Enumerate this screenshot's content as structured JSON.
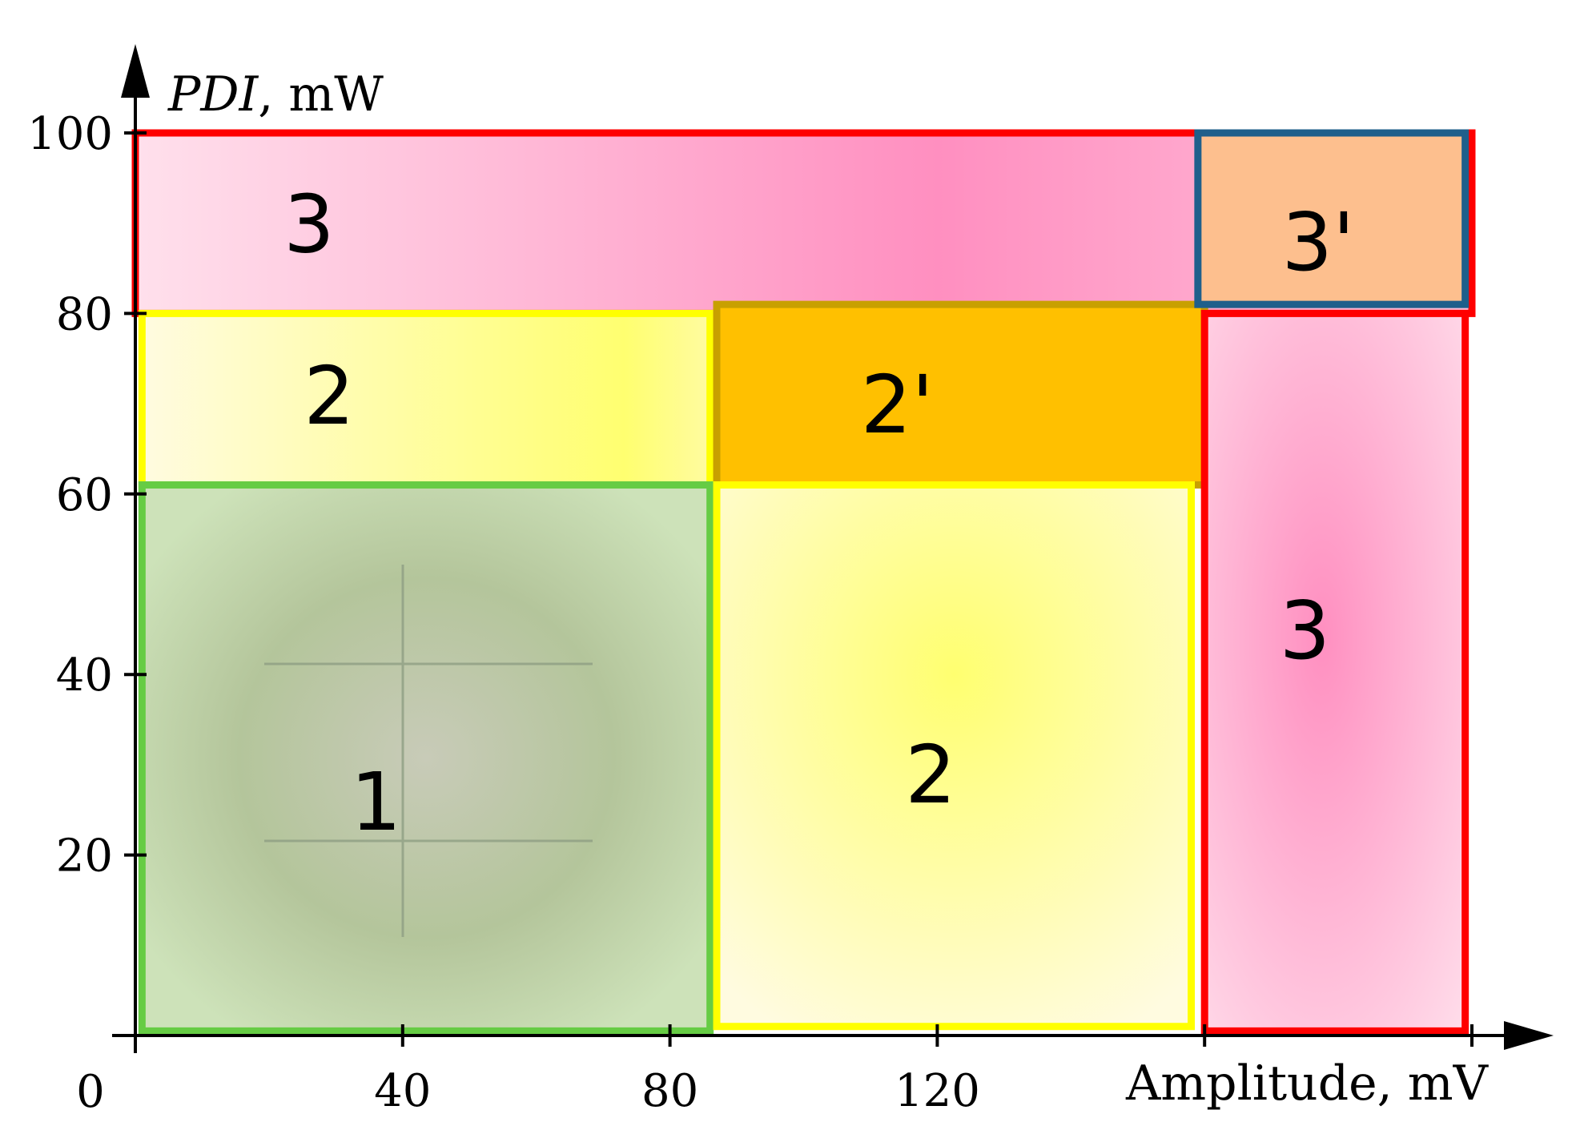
{
  "chart_data": {
    "type": "region_map",
    "title": "",
    "xlabel": "Amplitude, mV",
    "ylabel_italic": "PDI",
    "ylabel_unit": ", mW",
    "xlim": [
      0,
      200
    ],
    "ylim": [
      0,
      100
    ],
    "origin_label": "0",
    "x_ticks": [
      {
        "value": 40,
        "label": "40"
      },
      {
        "value": 80,
        "label": "80"
      },
      {
        "value": 120,
        "label": "120"
      },
      {
        "value": 160,
        "label": ""
      },
      {
        "value": 200,
        "label": ""
      }
    ],
    "y_ticks": [
      {
        "value": 20,
        "label": "20"
      },
      {
        "value": 40,
        "label": "40"
      },
      {
        "value": 60,
        "label": "60"
      },
      {
        "value": 80,
        "label": "80"
      },
      {
        "value": 100,
        "label": "100"
      }
    ],
    "regions": [
      {
        "label": "3",
        "x": [
          0,
          200
        ],
        "y": [
          80,
          100
        ],
        "fill": "#ff8fc0",
        "stroke": "#ff0000",
        "label_at": [
          26,
          90
        ]
      },
      {
        "label": "2",
        "x": [
          1,
          86
        ],
        "y": [
          61,
          80
        ],
        "fill": "#ffff70",
        "stroke": "#ffff00",
        "label_at": [
          29,
          71
        ]
      },
      {
        "label": "2'",
        "x": [
          87,
          160
        ],
        "y": [
          61,
          81
        ],
        "fill": "#ffc000",
        "stroke": "#c8a000",
        "label_at": [
          114,
          70
        ]
      },
      {
        "label": "3'",
        "x": [
          159,
          199
        ],
        "y": [
          81,
          100
        ],
        "fill": "#fdbf8e",
        "stroke": "#1f5f8b",
        "label_at": [
          177,
          88
        ]
      },
      {
        "label": "1",
        "x": [
          1,
          86
        ],
        "y": [
          0.5,
          61
        ],
        "fill": "#b7c69d",
        "stroke": "#66cc44",
        "label_at": [
          36,
          26
        ]
      },
      {
        "label": "2",
        "x": [
          87,
          158
        ],
        "y": [
          1,
          61
        ],
        "fill": "#ffff80",
        "stroke": "#ffff00",
        "label_at": [
          119,
          29
        ]
      },
      {
        "label": "3",
        "x": [
          160,
          199
        ],
        "y": [
          0.5,
          80
        ],
        "fill": "#ff8fc0",
        "stroke": "#ff0000",
        "label_at": [
          175,
          45
        ]
      }
    ],
    "colors": {
      "axis": "#000000",
      "region1_center": "#c8cbb8",
      "region1_edge": "#cde2b9",
      "region2_center": "#ffff70",
      "region2_edge": "#fffbe0",
      "region3_center": "#ff8fc0",
      "region3_edge": "#ffe0ec"
    }
  }
}
